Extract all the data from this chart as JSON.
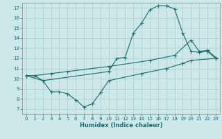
{
  "xlabel": "Humidex (Indice chaleur)",
  "bg_color": "#cce8e8",
  "grid_color": "#aacccc",
  "line_color": "#1a6b6b",
  "xlim": [
    -0.5,
    23.5
  ],
  "ylim": [
    6.5,
    17.5
  ],
  "xticks": [
    0,
    1,
    2,
    3,
    4,
    5,
    6,
    7,
    8,
    9,
    10,
    11,
    12,
    13,
    14,
    15,
    16,
    17,
    18,
    19,
    20,
    21,
    22,
    23
  ],
  "yticks": [
    7,
    8,
    9,
    10,
    11,
    12,
    13,
    14,
    15,
    16,
    17
  ],
  "line1_x": [
    0,
    1,
    2,
    10,
    11,
    12,
    13,
    14,
    15,
    16,
    17,
    18,
    19,
    20,
    21,
    22,
    23
  ],
  "line1_y": [
    10.3,
    10.3,
    9.8,
    10.7,
    12.0,
    12.1,
    14.5,
    15.5,
    16.8,
    17.2,
    17.2,
    16.9,
    14.5,
    12.7,
    12.6,
    12.7,
    12.0
  ],
  "line2_x": [
    0,
    1,
    3,
    5,
    10,
    15,
    18,
    20,
    21,
    22,
    23
  ],
  "line2_y": [
    10.3,
    10.3,
    10.5,
    10.7,
    11.2,
    11.8,
    12.3,
    13.8,
    12.7,
    12.8,
    12.1
  ],
  "line3_x": [
    0,
    2,
    3,
    4,
    5,
    6,
    7,
    8,
    9,
    10,
    14,
    17,
    19,
    20,
    23
  ],
  "line3_y": [
    10.3,
    9.8,
    8.7,
    8.7,
    8.5,
    7.9,
    7.2,
    7.5,
    8.6,
    9.8,
    10.5,
    11.0,
    11.5,
    11.8,
    12.0
  ]
}
